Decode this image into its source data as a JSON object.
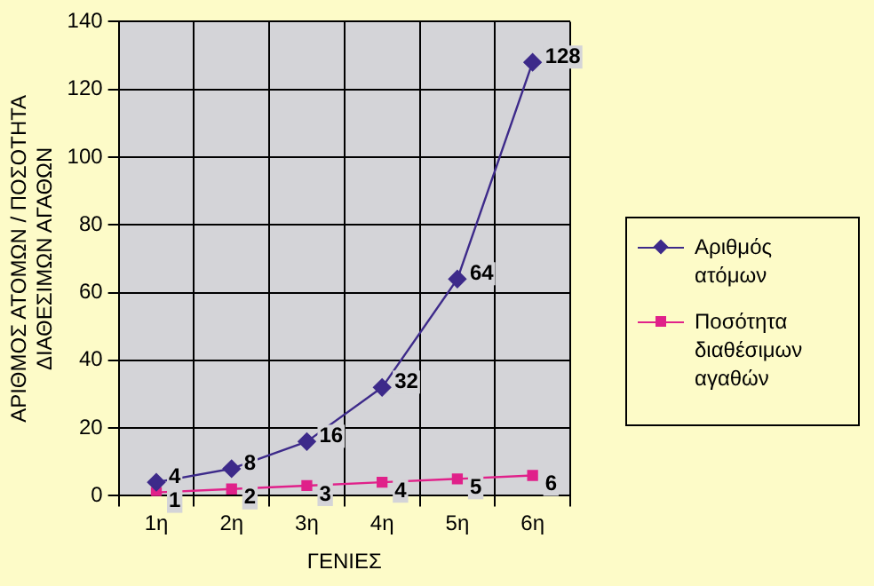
{
  "chart_data": {
    "type": "line",
    "xlabel": "ΓΕΝΙΕΣ",
    "ylabel": "ΑΡΙΘΜΟΣ ΑΤΟΜΩΝ / ΠΟΣΟΤΗΤΑ ΔΙΑΘΕΣΙΜΩΝ ΑΓΑΘΩΝ",
    "categories": [
      "1η",
      "2η",
      "3η",
      "4η",
      "5η",
      "6η"
    ],
    "series": [
      {
        "name": "Αριθμός ατόμων",
        "color": "#3d2a8a",
        "marker": "diamond",
        "values": [
          4,
          8,
          16,
          32,
          64,
          128
        ]
      },
      {
        "name": "Ποσότητα διαθέσιμων αγαθών",
        "color": "#e0218a",
        "marker": "square",
        "values": [
          1,
          2,
          3,
          4,
          5,
          6
        ]
      }
    ],
    "ylim": [
      0,
      140
    ],
    "yticks": [
      0,
      20,
      40,
      60,
      80,
      100,
      120,
      140
    ],
    "grid": true,
    "legend": "right",
    "data_labels": true
  }
}
